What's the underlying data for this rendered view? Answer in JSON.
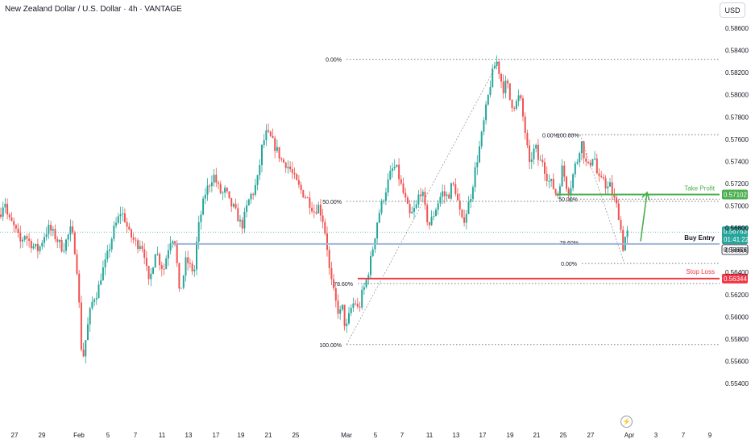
{
  "header": {
    "title": "New Zealand Dollar / U.S. Dollar · 4h · VANTAGE"
  },
  "toolbar": {
    "currency": "USD"
  },
  "icons": {
    "replay": "lightning-bolt-icon"
  },
  "colors": {
    "up": "#26a69a",
    "down": "#ef5350",
    "take_profit": "#4caf50",
    "stop_loss": "#f23645",
    "buy_entry": "#9fb5d9",
    "current_price": "#26a69a",
    "fib": "#787b86"
  },
  "chart_data": {
    "type": "candlestick",
    "title": "New Zealand Dollar / U.S. Dollar · 4h · VANTAGE",
    "ylim": [
      0.553,
      0.587
    ],
    "y_ticks": [
      "0.58600",
      "0.58400",
      "0.58200",
      "0.58000",
      "0.57800",
      "0.57600",
      "0.57400",
      "0.57200",
      "0.57000",
      "0.56800",
      "0.56600",
      "0.56400",
      "0.56200",
      "0.56000",
      "0.55800",
      "0.55600",
      "0.55400"
    ],
    "x_ticks": [
      "27",
      "29",
      "Feb",
      "5",
      "7",
      "11",
      "13",
      "17",
      "19",
      "21",
      "25",
      "Mar",
      "5",
      "7",
      "11",
      "13",
      "17",
      "19",
      "21",
      "25",
      "27",
      "Apr",
      "3",
      "7",
      "9"
    ],
    "grid": false,
    "price_path": [
      [
        0,
        0.5692
      ],
      [
        3,
        0.57
      ],
      [
        6,
        0.5705
      ],
      [
        10,
        0.5688
      ],
      [
        14,
        0.5685
      ],
      [
        18,
        0.568
      ],
      [
        22,
        0.5673
      ],
      [
        26,
        0.5666
      ],
      [
        30,
        0.5675
      ],
      [
        36,
        0.5668
      ],
      [
        42,
        0.5663
      ],
      [
        48,
        0.566
      ],
      [
        54,
        0.5672
      ],
      [
        60,
        0.568
      ],
      [
        66,
        0.5675
      ],
      [
        72,
        0.5668
      ],
      [
        78,
        0.5661
      ],
      [
        84,
        0.5672
      ],
      [
        88,
        0.5679
      ],
      [
        92,
        0.5666
      ],
      [
        96,
        0.564
      ],
      [
        99,
        0.56
      ],
      [
        102,
        0.5557
      ],
      [
        105,
        0.5573
      ],
      [
        109,
        0.5592
      ],
      [
        113,
        0.561
      ],
      [
        117,
        0.5618
      ],
      [
        121,
        0.5622
      ],
      [
        126,
        0.5639
      ],
      [
        131,
        0.5649
      ],
      [
        136,
        0.5663
      ],
      [
        141,
        0.5678
      ],
      [
        146,
        0.5687
      ],
      [
        150,
        0.5695
      ],
      [
        155,
        0.5688
      ],
      [
        160,
        0.5675
      ],
      [
        165,
        0.567
      ],
      [
        170,
        0.5665
      ],
      [
        175,
        0.5667
      ],
      [
        180,
        0.5655
      ],
      [
        184,
        0.5628
      ],
      [
        188,
        0.564
      ],
      [
        193,
        0.5661
      ],
      [
        198,
        0.565
      ],
      [
        203,
        0.5642
      ],
      [
        208,
        0.566
      ],
      [
        213,
        0.5673
      ],
      [
        218,
        0.5667
      ],
      [
        222,
        0.562
      ],
      [
        226,
        0.563
      ],
      [
        231,
        0.5652
      ],
      [
        236,
        0.5645
      ],
      [
        241,
        0.564
      ],
      [
        245,
        0.5675
      ],
      [
        250,
        0.5695
      ],
      [
        255,
        0.5712
      ],
      [
        260,
        0.572
      ],
      [
        265,
        0.5728
      ],
      [
        270,
        0.5718
      ],
      [
        275,
        0.571
      ],
      [
        280,
        0.5714
      ],
      [
        285,
        0.5702
      ],
      [
        290,
        0.5698
      ],
      [
        295,
        0.569
      ],
      [
        300,
        0.5681
      ],
      [
        305,
        0.5695
      ],
      [
        310,
        0.5708
      ],
      [
        315,
        0.5713
      ],
      [
        320,
        0.5725
      ],
      [
        325,
        0.5752
      ],
      [
        330,
        0.5765
      ],
      [
        335,
        0.5762
      ],
      [
        340,
        0.5755
      ],
      [
        345,
        0.5748
      ],
      [
        350,
        0.574
      ],
      [
        355,
        0.5738
      ],
      [
        360,
        0.5733
      ],
      [
        365,
        0.5725
      ],
      [
        370,
        0.5718
      ],
      [
        375,
        0.5712
      ],
      [
        380,
        0.5708
      ],
      [
        385,
        0.5702
      ],
      [
        390,
        0.5695
      ],
      [
        395,
        0.57
      ],
      [
        400,
        0.569
      ],
      [
        405,
        0.567
      ],
      [
        409,
        0.564
      ],
      [
        413,
        0.5625
      ],
      [
        417,
        0.5612
      ],
      [
        421,
        0.5602
      ],
      [
        425,
        0.5608
      ],
      [
        429,
        0.5587
      ],
      [
        433,
        0.56
      ],
      [
        437,
        0.5611
      ],
      [
        441,
        0.5613
      ],
      [
        445,
        0.5605
      ],
      [
        449,
        0.562
      ],
      [
        453,
        0.5628
      ],
      [
        457,
        0.564
      ],
      [
        461,
        0.5655
      ],
      [
        465,
        0.5672
      ],
      [
        469,
        0.569
      ],
      [
        473,
        0.57
      ],
      [
        477,
        0.571
      ],
      [
        481,
        0.572
      ],
      [
        485,
        0.573
      ],
      [
        489,
        0.5735
      ],
      [
        493,
        0.5732
      ],
      [
        497,
        0.572
      ],
      [
        501,
        0.571
      ],
      [
        505,
        0.57
      ],
      [
        509,
        0.569
      ],
      [
        513,
        0.5695
      ],
      [
        517,
        0.57
      ],
      [
        521,
        0.5715
      ],
      [
        525,
        0.5708
      ],
      [
        529,
        0.569
      ],
      [
        533,
        0.5683
      ],
      [
        537,
        0.569
      ],
      [
        541,
        0.5698
      ],
      [
        545,
        0.5706
      ],
      [
        549,
        0.5712
      ],
      [
        553,
        0.5708
      ],
      [
        557,
        0.571
      ],
      [
        561,
        0.572
      ],
      [
        565,
        0.5715
      ],
      [
        569,
        0.57
      ],
      [
        573,
        0.5685
      ],
      [
        577,
        0.569
      ],
      [
        581,
        0.57
      ],
      [
        585,
        0.5712
      ],
      [
        589,
        0.573
      ],
      [
        593,
        0.5745
      ],
      [
        597,
        0.576
      ],
      [
        601,
        0.5778
      ],
      [
        605,
        0.5795
      ],
      [
        609,
        0.5812
      ],
      [
        613,
        0.5825
      ],
      [
        617,
        0.583
      ],
      [
        621,
        0.5815
      ],
      [
        625,
        0.5805
      ],
      [
        629,
        0.5812
      ],
      [
        633,
        0.5795
      ],
      [
        637,
        0.579
      ],
      [
        641,
        0.5793
      ],
      [
        645,
        0.58
      ],
      [
        649,
        0.578
      ],
      [
        653,
        0.576
      ],
      [
        657,
        0.5735
      ],
      [
        661,
        0.5748
      ],
      [
        665,
        0.5752
      ],
      [
        669,
        0.5738
      ],
      [
        673,
        0.5742
      ],
      [
        677,
        0.573
      ],
      [
        681,
        0.5722
      ],
      [
        685,
        0.572
      ],
      [
        689,
        0.5712
      ],
      [
        693,
        0.571
      ],
      [
        697,
        0.5735
      ],
      [
        701,
        0.5725
      ],
      [
        705,
        0.5712
      ],
      [
        709,
        0.572
      ],
      [
        713,
        0.5735
      ],
      [
        717,
        0.5742
      ],
      [
        721,
        0.576
      ],
      [
        725,
        0.5745
      ],
      [
        729,
        0.5733
      ],
      [
        733,
        0.574
      ],
      [
        737,
        0.5748
      ],
      [
        741,
        0.5728
      ],
      [
        745,
        0.572
      ],
      [
        749,
        0.5726
      ],
      [
        753,
        0.5715
      ],
      [
        757,
        0.5718
      ],
      [
        761,
        0.5708
      ],
      [
        765,
        0.57
      ],
      [
        769,
        0.5688
      ],
      [
        773,
        0.5662
      ],
      [
        776,
        0.5672
      ],
      [
        779,
        0.5676
      ]
    ],
    "fib_left": {
      "levels": [
        {
          "label": "0.00%",
          "value": 0.5832
        },
        {
          "label": "50.00%",
          "value": 0.5704
        },
        {
          "label": "78.60%",
          "value": 0.563
        },
        {
          "label": "100.00%",
          "value": 0.5575
        }
      ]
    },
    "fib_right": {
      "levels": [
        {
          "label": "0.00%",
          "value": 0.5764
        },
        {
          "label": "100.00%",
          "value": 0.5764
        },
        {
          "label": "50.00%",
          "value": 0.5706
        },
        {
          "label": "78.60%",
          "value": 0.5667
        },
        {
          "label": "0.00%",
          "value": 0.5648
        }
      ]
    },
    "levels": {
      "take_profit": {
        "label": "Take Profit",
        "value": 0.57102,
        "text": "0.57102"
      },
      "buy_entry": {
        "label": "Buy Entry",
        "value": 0.56656,
        "text": "0.56656"
      },
      "stop_loss": {
        "label": "Stop Loss",
        "value": 0.56344,
        "text": "0.56344"
      },
      "current": {
        "value": 0.56763,
        "text": "0.56763",
        "timer": "01:41:22"
      }
    },
    "partial_tick": "0.56800"
  }
}
